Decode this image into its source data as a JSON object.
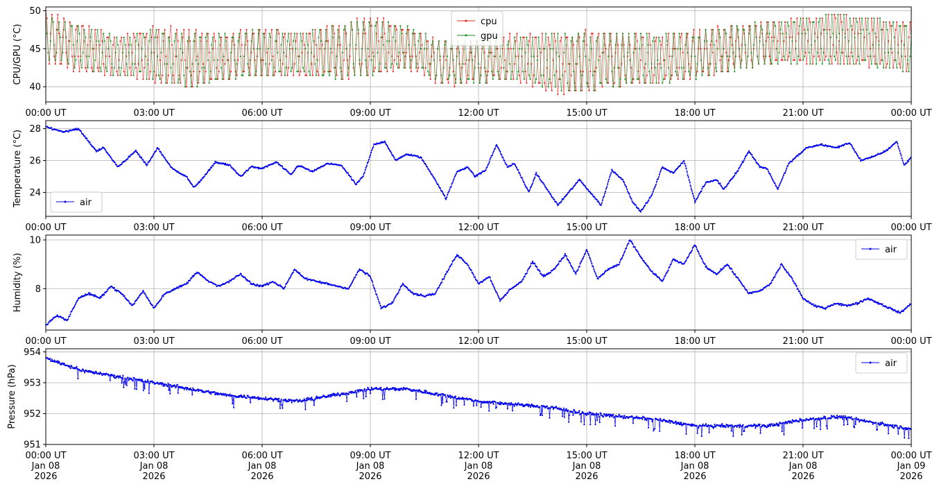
{
  "chart_data": [
    {
      "type": "line",
      "ylabel": "CPU/GPU (°C)",
      "ylim": [
        38,
        50.5
      ],
      "yticks": [
        40,
        45,
        50
      ],
      "grid": true,
      "legend": {
        "placement": "top-center",
        "entries": [
          "cpu",
          "gpu"
        ]
      },
      "x_range": [
        "00:00 UT",
        "00:00 UT"
      ],
      "x_tick_labels": [
        "00:00 UT",
        "03:00 UT",
        "06:00 UT",
        "09:00 UT",
        "12:00 UT",
        "15:00 UT",
        "18:00 UT",
        "21:00 UT",
        "00:00 UT"
      ],
      "series": [
        {
          "name": "cpu",
          "color": "#e8231f",
          "style": "oscillating",
          "x_hours": [
            0,
            1,
            2,
            3,
            4,
            5,
            6,
            7,
            8,
            9,
            10,
            11,
            12,
            13,
            14,
            15,
            16,
            17,
            18,
            19,
            20,
            21,
            22,
            23,
            24
          ],
          "low": [
            43,
            42,
            41.5,
            40.5,
            40,
            41,
            41.5,
            41.5,
            41,
            41.5,
            42.5,
            40,
            40.5,
            41,
            39,
            39.5,
            40,
            40.5,
            41,
            42,
            43,
            43,
            43,
            42.5,
            42
          ],
          "high": [
            50,
            48.5,
            46.5,
            48,
            47.5,
            47,
            48,
            47,
            48,
            49.5,
            48,
            46,
            46,
            47,
            47,
            47.5,
            47,
            47,
            47.5,
            48,
            48.5,
            49,
            49.5,
            49,
            48.5
          ]
        },
        {
          "name": "gpu",
          "color": "#1d8a1d",
          "style": "oscillating",
          "x_hours": [
            0,
            1,
            2,
            3,
            4,
            5,
            6,
            7,
            8,
            9,
            10,
            11,
            12,
            13,
            14,
            15,
            16,
            17,
            18,
            19,
            20,
            21,
            22,
            23,
            24
          ],
          "low": [
            43.5,
            42.5,
            41.5,
            41,
            40,
            41,
            41.5,
            41.5,
            41,
            41.5,
            42.5,
            40.5,
            40.5,
            41,
            39.5,
            39.5,
            40,
            40.5,
            41,
            42,
            43,
            43,
            43,
            42.5,
            42
          ],
          "high": [
            49.5,
            48,
            46.5,
            47.5,
            47,
            47,
            47.5,
            47,
            48,
            49,
            48,
            46,
            46,
            46.5,
            47,
            47,
            47,
            47,
            47,
            48,
            48.5,
            49,
            49.5,
            49,
            48.5
          ]
        }
      ]
    },
    {
      "type": "line",
      "ylabel": "Temperature (°C)",
      "ylim": [
        22.5,
        28.5
      ],
      "yticks": [
        24,
        26,
        28
      ],
      "grid": true,
      "legend": {
        "placement": "bottom-left",
        "entries": [
          "air"
        ]
      },
      "x_range": [
        "00:00 UT",
        "00:00 UT"
      ],
      "x_tick_labels": [
        "00:00 UT",
        "03:00 UT",
        "06:00 UT",
        "09:00 UT",
        "12:00 UT",
        "15:00 UT",
        "18:00 UT",
        "21:00 UT",
        "00:00 UT"
      ],
      "series": [
        {
          "name": "air",
          "color": "#0000ee",
          "x_hours": [
            0,
            0.5,
            0.9,
            1.4,
            1.6,
            2.0,
            2.3,
            2.5,
            2.8,
            3.1,
            3.5,
            3.9,
            4.1,
            4.4,
            4.7,
            5.1,
            5.4,
            5.7,
            6.0,
            6.4,
            6.8,
            7.0,
            7.4,
            7.8,
            8.2,
            8.6,
            8.8,
            9.1,
            9.4,
            9.7,
            10.0,
            10.4,
            10.8,
            11.1,
            11.4,
            11.7,
            11.9,
            12.2,
            12.5,
            12.8,
            13.0,
            13.4,
            13.6,
            13.9,
            14.2,
            14.5,
            14.8,
            15.1,
            15.4,
            15.7,
            16.0,
            16.3,
            16.5,
            16.8,
            17.1,
            17.4,
            17.7,
            18.0,
            18.3,
            18.6,
            18.8,
            19.2,
            19.5,
            19.8,
            20.0,
            20.3,
            20.6,
            20.8,
            21.1,
            21.5,
            21.9,
            22.3,
            22.6,
            22.9,
            23.3,
            23.6,
            23.8,
            24.0
          ],
          "y": [
            28.1,
            27.8,
            28.0,
            26.6,
            26.8,
            25.6,
            26.2,
            26.6,
            25.7,
            26.8,
            25.5,
            25.0,
            24.3,
            25.0,
            25.9,
            25.7,
            25.0,
            25.6,
            25.5,
            25.9,
            25.1,
            25.7,
            25.3,
            25.8,
            25.7,
            24.5,
            25.0,
            27.0,
            27.2,
            26.0,
            26.4,
            26.2,
            24.8,
            23.6,
            25.3,
            25.6,
            25.0,
            25.4,
            27.0,
            25.6,
            25.8,
            24.0,
            25.2,
            24.2,
            23.2,
            24.0,
            24.8,
            24.0,
            23.2,
            25.4,
            24.8,
            23.3,
            22.8,
            23.8,
            25.6,
            25.2,
            26.0,
            23.4,
            24.6,
            24.8,
            24.2,
            25.4,
            26.6,
            25.6,
            25.5,
            24.2,
            25.8,
            26.2,
            26.8,
            27.0,
            26.8,
            27.1,
            26.0,
            26.2,
            26.6,
            27.2,
            25.7,
            26.2
          ]
        }
      ]
    },
    {
      "type": "line",
      "ylabel": "Humidity (%)",
      "ylim": [
        6.3,
        10.2
      ],
      "yticks": [
        8,
        10
      ],
      "grid": true,
      "legend": {
        "placement": "top-right",
        "entries": [
          "air"
        ]
      },
      "x_range": [
        "00:00 UT",
        "00:00 UT"
      ],
      "x_tick_labels": [
        "00:00 UT",
        "03:00 UT",
        "06:00 UT",
        "09:00 UT",
        "12:00 UT",
        "15:00 UT",
        "18:00 UT",
        "21:00 UT",
        "00:00 UT"
      ],
      "series": [
        {
          "name": "air",
          "color": "#0000ee",
          "x_hours": [
            0,
            0.3,
            0.6,
            0.9,
            1.2,
            1.5,
            1.8,
            2.1,
            2.4,
            2.7,
            3.0,
            3.3,
            3.6,
            3.9,
            4.2,
            4.5,
            4.8,
            5.1,
            5.4,
            5.7,
            6.0,
            6.3,
            6.6,
            6.9,
            7.2,
            7.5,
            7.8,
            8.1,
            8.4,
            8.7,
            9.0,
            9.3,
            9.6,
            9.9,
            10.2,
            10.5,
            10.8,
            11.1,
            11.4,
            11.7,
            12.0,
            12.3,
            12.6,
            12.9,
            13.2,
            13.5,
            13.8,
            14.1,
            14.4,
            14.7,
            15.0,
            15.3,
            15.6,
            15.9,
            16.2,
            16.5,
            16.8,
            17.1,
            17.4,
            17.7,
            18.0,
            18.3,
            18.6,
            18.9,
            19.2,
            19.5,
            19.8,
            20.1,
            20.4,
            20.7,
            21.0,
            21.3,
            21.6,
            21.9,
            22.2,
            22.5,
            22.8,
            23.1,
            23.4,
            23.7,
            24.0
          ],
          "y": [
            6.5,
            6.9,
            6.7,
            7.6,
            7.8,
            7.6,
            8.1,
            7.8,
            7.3,
            7.9,
            7.2,
            7.8,
            8.0,
            8.2,
            8.7,
            8.3,
            8.1,
            8.3,
            8.6,
            8.2,
            8.1,
            8.3,
            8.0,
            8.8,
            8.4,
            8.3,
            8.2,
            8.1,
            8.0,
            8.8,
            8.5,
            7.2,
            7.4,
            8.2,
            7.8,
            7.7,
            7.8,
            8.6,
            9.4,
            9.0,
            8.2,
            8.5,
            7.5,
            8.0,
            8.3,
            9.1,
            8.5,
            8.8,
            9.4,
            8.6,
            9.6,
            8.4,
            8.8,
            9.0,
            10.0,
            9.3,
            8.7,
            8.3,
            9.2,
            9.0,
            9.8,
            8.9,
            8.6,
            9.0,
            8.4,
            7.8,
            7.9,
            8.2,
            9.0,
            8.4,
            7.6,
            7.3,
            7.2,
            7.4,
            7.3,
            7.4,
            7.6,
            7.4,
            7.2,
            7.0,
            7.4
          ]
        }
      ]
    },
    {
      "type": "line",
      "ylabel": "Pressure (hPa)",
      "ylim": [
        951,
        954.1
      ],
      "yticks": [
        951,
        952,
        953,
        954
      ],
      "grid": true,
      "legend": {
        "placement": "top-right",
        "entries": [
          "air"
        ]
      },
      "x_range": [
        "Jan 08 2026 00:00 UT",
        "Jan 09 2026 00:00 UT"
      ],
      "x_tick_labels": [
        [
          "00:00 UT",
          "Jan 08",
          "2026"
        ],
        [
          "03:00 UT",
          "Jan 08",
          "2026"
        ],
        [
          "06:00 UT",
          "Jan 08",
          "2026"
        ],
        [
          "09:00 UT",
          "Jan 08",
          "2026"
        ],
        [
          "12:00 UT",
          "Jan 08",
          "2026"
        ],
        [
          "15:00 UT",
          "Jan 08",
          "2026"
        ],
        [
          "18:00 UT",
          "Jan 08",
          "2026"
        ],
        [
          "21:00 UT",
          "Jan 08",
          "2026"
        ],
        [
          "00:00 UT",
          "Jan 09",
          "2026"
        ]
      ],
      "series": [
        {
          "name": "air",
          "color": "#0000ee",
          "x_hours": [
            0,
            1,
            2,
            3,
            4,
            5,
            6,
            7,
            8,
            9,
            10,
            11,
            12,
            13,
            14,
            15,
            16,
            17,
            18,
            19,
            20,
            21,
            22,
            23,
            24
          ],
          "y": [
            953.8,
            953.4,
            953.2,
            953.0,
            952.8,
            952.6,
            952.5,
            952.4,
            952.6,
            952.8,
            952.8,
            952.6,
            952.4,
            952.3,
            952.2,
            952.0,
            951.9,
            951.8,
            951.6,
            951.6,
            951.6,
            951.8,
            951.9,
            951.7,
            951.5
          ]
        }
      ]
    }
  ]
}
